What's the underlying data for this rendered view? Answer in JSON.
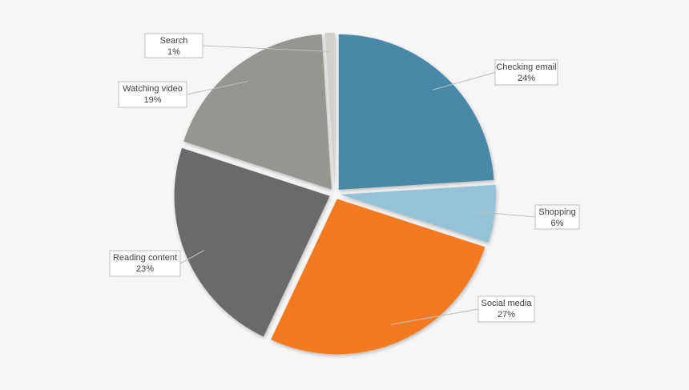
{
  "chart_data": {
    "type": "pie",
    "categories": [
      "Checking email",
      "Shopping",
      "Social media",
      "Reading content",
      "Watching video",
      "Search"
    ],
    "values": [
      24,
      6,
      27,
      23,
      19,
      1
    ],
    "value_labels": [
      "24%",
      "6%",
      "27%",
      "23%",
      "19%",
      "1%"
    ],
    "colors": [
      "#4a89a7",
      "#94c2d7",
      "#f47a21",
      "#6b6b69",
      "#969691",
      "#d0d1cd"
    ]
  }
}
